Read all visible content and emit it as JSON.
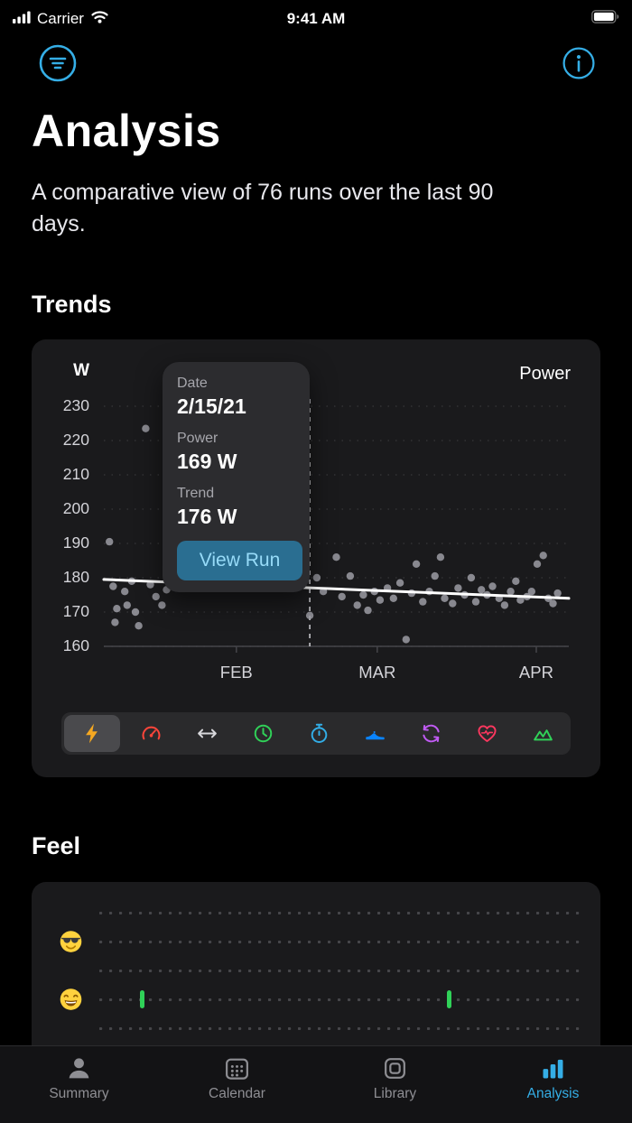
{
  "colors": {
    "accent": "#35aee6",
    "background": "#000000",
    "card": "#1a1a1c",
    "feel_tick_green": "#30d158"
  },
  "status_bar": {
    "carrier": "Carrier",
    "time": "9:41 AM"
  },
  "header": {
    "title": "Analysis",
    "subtitle": "A comparative view of 76 runs over the last 90 days."
  },
  "trends": {
    "section_title": "Trends",
    "tooltip": {
      "date_label": "Date",
      "date_value": "2/15/21",
      "power_label": "Power",
      "power_value": "169 W",
      "trend_label": "Trend",
      "trend_value": "176 W",
      "button_label": "View Run"
    },
    "metrics": [
      {
        "name": "power",
        "color": "#f5a821",
        "selected": true
      },
      {
        "name": "pace",
        "color": "#ff453a",
        "selected": false
      },
      {
        "name": "distance",
        "color": "#d8d8dc",
        "selected": false
      },
      {
        "name": "duration",
        "color": "#30d158",
        "selected": false
      },
      {
        "name": "tempo",
        "color": "#32ade6",
        "selected": false
      },
      {
        "name": "shoes",
        "color": "#0a84ff",
        "selected": false
      },
      {
        "name": "cadence",
        "color": "#bf5af2",
        "selected": false
      },
      {
        "name": "heart-rate",
        "color": "#ff375f",
        "selected": false
      },
      {
        "name": "elevation",
        "color": "#30d158",
        "selected": false
      }
    ]
  },
  "chart_data": {
    "type": "scatter",
    "title": "Power",
    "ylabel": "W",
    "unit": "W",
    "ylim": [
      160,
      230
    ],
    "yticks": [
      230,
      220,
      210,
      200,
      190,
      180,
      170,
      160
    ],
    "x_axis": [
      {
        "label": "FEB",
        "x": 0.285
      },
      {
        "label": "MAR",
        "x": 0.588
      },
      {
        "label": "APR",
        "x": 0.93
      }
    ],
    "cursor_x": 0.443,
    "selected_point": {
      "date": "2/15/21",
      "power_w": 169,
      "trend_w": 176
    },
    "trend": {
      "x": [
        0,
        1
      ],
      "y": [
        179.5,
        174
      ]
    },
    "points": [
      [
        0.012,
        190.5
      ],
      [
        0.02,
        177.5
      ],
      [
        0.028,
        171
      ],
      [
        0.024,
        167
      ],
      [
        0.045,
        176
      ],
      [
        0.05,
        172
      ],
      [
        0.06,
        179
      ],
      [
        0.068,
        170
      ],
      [
        0.075,
        166
      ],
      [
        0.09,
        223.5
      ],
      [
        0.1,
        178
      ],
      [
        0.112,
        174.5
      ],
      [
        0.125,
        172
      ],
      [
        0.135,
        176.5
      ],
      [
        0.443,
        169
      ],
      [
        0.458,
        180
      ],
      [
        0.472,
        176
      ],
      [
        0.5,
        186
      ],
      [
        0.512,
        174.5
      ],
      [
        0.53,
        180.5
      ],
      [
        0.545,
        172
      ],
      [
        0.558,
        175
      ],
      [
        0.568,
        170.5
      ],
      [
        0.582,
        176
      ],
      [
        0.594,
        173.5
      ],
      [
        0.61,
        177
      ],
      [
        0.623,
        174
      ],
      [
        0.637,
        178.5
      ],
      [
        0.65,
        162
      ],
      [
        0.662,
        175.5
      ],
      [
        0.672,
        184
      ],
      [
        0.686,
        173
      ],
      [
        0.7,
        176
      ],
      [
        0.712,
        180.5
      ],
      [
        0.724,
        186
      ],
      [
        0.733,
        174
      ],
      [
        0.75,
        172.5
      ],
      [
        0.762,
        177
      ],
      [
        0.776,
        175
      ],
      [
        0.79,
        180
      ],
      [
        0.8,
        173
      ],
      [
        0.812,
        176.5
      ],
      [
        0.824,
        175
      ],
      [
        0.836,
        177.5
      ],
      [
        0.85,
        174
      ],
      [
        0.862,
        172
      ],
      [
        0.875,
        176
      ],
      [
        0.886,
        179
      ],
      [
        0.896,
        173.5
      ],
      [
        0.91,
        174.5
      ],
      [
        0.92,
        176
      ],
      [
        0.932,
        184
      ],
      [
        0.945,
        186.5
      ],
      [
        0.956,
        174
      ],
      [
        0.966,
        172.5
      ],
      [
        0.976,
        175.5
      ]
    ]
  },
  "feel": {
    "section_title": "Feel",
    "rows": [
      {
        "emoji": "",
        "emoji_name": "",
        "ticks": []
      },
      {
        "emoji": "😎",
        "emoji_name": "cool",
        "ticks": []
      },
      {
        "emoji": "",
        "emoji_name": "",
        "ticks": []
      },
      {
        "emoji": "😄",
        "emoji_name": "grin",
        "ticks": [
          0.09,
          0.727
        ]
      },
      {
        "emoji": "",
        "emoji_name": "",
        "ticks": []
      }
    ]
  },
  "tab_bar": {
    "items": [
      {
        "label": "Summary",
        "icon": "person",
        "active": false
      },
      {
        "label": "Calendar",
        "icon": "calendar",
        "active": false
      },
      {
        "label": "Library",
        "icon": "library",
        "active": false
      },
      {
        "label": "Analysis",
        "icon": "bars",
        "active": true
      }
    ]
  }
}
